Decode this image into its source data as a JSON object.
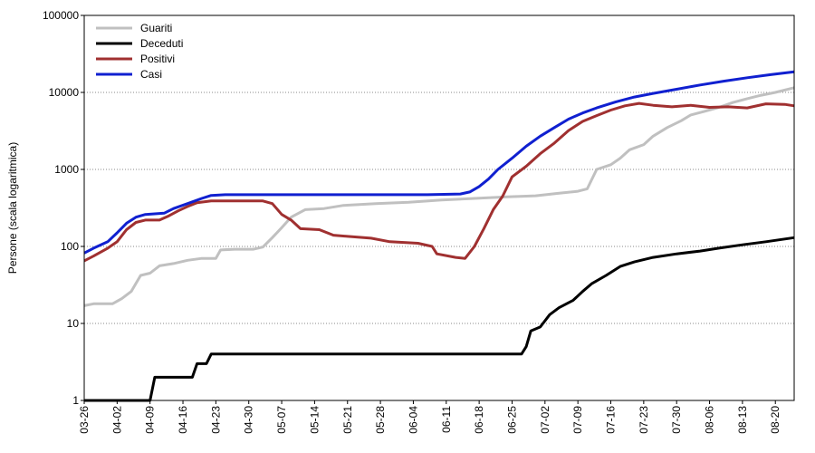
{
  "chart_data": {
    "type": "line",
    "ylabel": "Persone (scala logaritmica)",
    "xlabel": "",
    "yscale": "log",
    "ylim": [
      1,
      100000
    ],
    "ytick_labels": [
      "1",
      "10",
      "100",
      "1000",
      "10000",
      "100000"
    ],
    "ytick_values": [
      1,
      10,
      100,
      1000,
      10000,
      100000
    ],
    "xlim": [
      "03-26",
      "08-24"
    ],
    "xtick_labels": [
      "03-26",
      "04-02",
      "04-09",
      "04-16",
      "04-23",
      "04-30",
      "05-07",
      "05-14",
      "05-21",
      "05-28",
      "06-04",
      "06-11",
      "06-18",
      "06-25",
      "07-02",
      "07-09",
      "07-16",
      "07-23",
      "07-30",
      "08-06",
      "08-13",
      "08-20"
    ],
    "grid": true,
    "legend_position": "top-left",
    "series": [
      {
        "name": "Guariti",
        "color": "#c0c0c0",
        "points": [
          [
            "03-26",
            17
          ],
          [
            "03-28",
            18
          ],
          [
            "04-01",
            18
          ],
          [
            "04-03",
            21
          ],
          [
            "04-05",
            26
          ],
          [
            "04-07",
            42
          ],
          [
            "04-09",
            45
          ],
          [
            "04-11",
            56
          ],
          [
            "04-14",
            60
          ],
          [
            "04-17",
            66
          ],
          [
            "04-20",
            70
          ],
          [
            "04-23",
            70
          ],
          [
            "04-24",
            90
          ],
          [
            "04-27",
            92
          ],
          [
            "05-01",
            92
          ],
          [
            "05-03",
            98
          ],
          [
            "05-05",
            130
          ],
          [
            "05-07",
            175
          ],
          [
            "05-09",
            240
          ],
          [
            "05-12",
            300
          ],
          [
            "05-16",
            310
          ],
          [
            "05-20",
            340
          ],
          [
            "05-27",
            360
          ],
          [
            "06-03",
            375
          ],
          [
            "06-10",
            400
          ],
          [
            "06-17",
            420
          ],
          [
            "06-24",
            440
          ],
          [
            "06-30",
            455
          ],
          [
            "07-05",
            490
          ],
          [
            "07-09",
            520
          ],
          [
            "07-11",
            560
          ],
          [
            "07-13",
            1000
          ],
          [
            "07-16",
            1150
          ],
          [
            "07-18",
            1400
          ],
          [
            "07-20",
            1800
          ],
          [
            "07-23",
            2100
          ],
          [
            "07-25",
            2700
          ],
          [
            "07-28",
            3500
          ],
          [
            "07-31",
            4300
          ],
          [
            "08-02",
            5100
          ],
          [
            "08-05",
            5700
          ],
          [
            "08-08",
            6400
          ],
          [
            "08-11",
            7400
          ],
          [
            "08-14",
            8300
          ],
          [
            "08-17",
            9200
          ],
          [
            "08-20",
            10000
          ],
          [
            "08-24",
            11500
          ]
        ]
      },
      {
        "name": "Deceduti",
        "color": "#000000",
        "points": [
          [
            "03-26",
            1
          ],
          [
            "04-09",
            1
          ],
          [
            "04-10",
            2
          ],
          [
            "04-18",
            2
          ],
          [
            "04-19",
            3
          ],
          [
            "04-21",
            3
          ],
          [
            "04-22",
            4
          ],
          [
            "06-27",
            4
          ],
          [
            "06-28",
            5
          ],
          [
            "06-29",
            8
          ],
          [
            "07-01",
            9
          ],
          [
            "07-03",
            13
          ],
          [
            "07-05",
            16
          ],
          [
            "07-08",
            20
          ],
          [
            "07-10",
            26
          ],
          [
            "07-12",
            33
          ],
          [
            "07-15",
            42
          ],
          [
            "07-18",
            55
          ],
          [
            "07-21",
            63
          ],
          [
            "07-25",
            72
          ],
          [
            "07-30",
            80
          ],
          [
            "08-04",
            87
          ],
          [
            "08-08",
            95
          ],
          [
            "08-13",
            105
          ],
          [
            "08-18",
            115
          ],
          [
            "08-24",
            130
          ]
        ]
      },
      {
        "name": "Positivi",
        "color": "#a03030",
        "points": [
          [
            "03-26",
            65
          ],
          [
            "03-28",
            75
          ],
          [
            "03-31",
            95
          ],
          [
            "04-02",
            115
          ],
          [
            "04-04",
            165
          ],
          [
            "04-06",
            205
          ],
          [
            "04-08",
            220
          ],
          [
            "04-11",
            220
          ],
          [
            "04-13",
            250
          ],
          [
            "04-15",
            290
          ],
          [
            "04-17",
            330
          ],
          [
            "04-19",
            370
          ],
          [
            "04-22",
            390
          ],
          [
            "04-26",
            390
          ],
          [
            "05-03",
            390
          ],
          [
            "05-05",
            360
          ],
          [
            "05-07",
            260
          ],
          [
            "05-09",
            220
          ],
          [
            "05-11",
            170
          ],
          [
            "05-15",
            165
          ],
          [
            "05-18",
            140
          ],
          [
            "05-21",
            135
          ],
          [
            "05-26",
            128
          ],
          [
            "05-30",
            115
          ],
          [
            "06-05",
            110
          ],
          [
            "06-08",
            100
          ],
          [
            "06-09",
            80
          ],
          [
            "06-13",
            72
          ],
          [
            "06-15",
            70
          ],
          [
            "06-17",
            100
          ],
          [
            "06-19",
            170
          ],
          [
            "06-21",
            300
          ],
          [
            "06-23",
            450
          ],
          [
            "06-25",
            800
          ],
          [
            "06-28",
            1100
          ],
          [
            "07-01",
            1600
          ],
          [
            "07-04",
            2200
          ],
          [
            "07-07",
            3200
          ],
          [
            "07-10",
            4200
          ],
          [
            "07-13",
            5000
          ],
          [
            "07-16",
            5900
          ],
          [
            "07-19",
            6700
          ],
          [
            "07-22",
            7200
          ],
          [
            "07-25",
            6800
          ],
          [
            "07-29",
            6500
          ],
          [
            "08-02",
            6800
          ],
          [
            "08-06",
            6400
          ],
          [
            "08-10",
            6500
          ],
          [
            "08-14",
            6300
          ],
          [
            "08-18",
            7100
          ],
          [
            "08-22",
            7000
          ],
          [
            "08-24",
            6700
          ]
        ]
      },
      {
        "name": "Casi",
        "color": "#1020d0",
        "points": [
          [
            "03-26",
            82
          ],
          [
            "03-28",
            95
          ],
          [
            "03-31",
            115
          ],
          [
            "04-02",
            150
          ],
          [
            "04-04",
            200
          ],
          [
            "04-06",
            240
          ],
          [
            "04-08",
            260
          ],
          [
            "04-12",
            270
          ],
          [
            "04-14",
            310
          ],
          [
            "04-17",
            360
          ],
          [
            "04-20",
            420
          ],
          [
            "04-22",
            460
          ],
          [
            "04-25",
            470
          ],
          [
            "05-10",
            470
          ],
          [
            "05-24",
            470
          ],
          [
            "06-07",
            470
          ],
          [
            "06-14",
            480
          ],
          [
            "06-16",
            510
          ],
          [
            "06-18",
            600
          ],
          [
            "06-20",
            750
          ],
          [
            "06-22",
            1000
          ],
          [
            "06-25",
            1400
          ],
          [
            "06-28",
            2000
          ],
          [
            "07-01",
            2700
          ],
          [
            "07-04",
            3500
          ],
          [
            "07-07",
            4500
          ],
          [
            "07-10",
            5400
          ],
          [
            "07-13",
            6300
          ],
          [
            "07-17",
            7500
          ],
          [
            "07-21",
            8700
          ],
          [
            "07-25",
            9700
          ],
          [
            "07-30",
            11000
          ],
          [
            "08-04",
            12500
          ],
          [
            "08-09",
            14000
          ],
          [
            "08-14",
            15500
          ],
          [
            "08-19",
            17000
          ],
          [
            "08-24",
            18500
          ]
        ]
      }
    ]
  }
}
